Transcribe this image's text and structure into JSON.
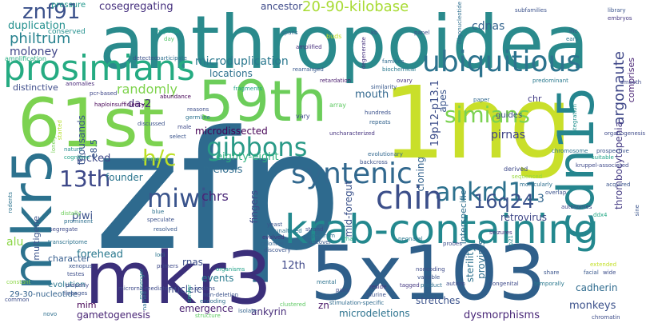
{
  "words": [
    {
      "text": "zfp",
      "color": "#2e6a8e"
    },
    {
      "text": "anthropoidea",
      "color": "#2a8a8c"
    },
    {
      "text": "1ng",
      "color": "#c9df2a"
    },
    {
      "text": "5x103",
      "color": "#2f5f8a"
    },
    {
      "text": "mkr3",
      "color": "#3b2f7a"
    },
    {
      "text": "61st",
      "color": "#7cd250"
    },
    {
      "text": "59th",
      "color": "#6ccd5a"
    },
    {
      "text": "cdn15",
      "color": "#25858e"
    },
    {
      "text": "mkr5",
      "color": "#2c728e"
    },
    {
      "text": "krab-containing",
      "color": "#23888e"
    },
    {
      "text": "prosimians",
      "color": "#25ab82"
    },
    {
      "text": "ubiquitious",
      "color": "#2c738e"
    },
    {
      "text": "syntenic",
      "color": "#31688e"
    },
    {
      "text": "gibbons",
      "color": "#2a9a87"
    },
    {
      "text": "ankrd11",
      "color": "#2d718e"
    },
    {
      "text": "chin",
      "color": "#3c4f8a"
    },
    {
      "text": "miwi",
      "color": "#3a548c"
    },
    {
      "text": "16q24",
      "color": "#3b528b"
    },
    {
      "text": "simians",
      "color": "#7ad151"
    },
    {
      "text": "znf91",
      "color": "#3b518b"
    },
    {
      "text": "13th",
      "color": "#3e4989"
    },
    {
      "text": "h/c",
      "color": "#bddf26"
    },
    {
      "text": "20-90-kilobase",
      "color": "#a8db34"
    },
    {
      "text": "cosegregating",
      "color": "#46307e"
    },
    {
      "text": "ancestor",
      "color": "#3e4a89"
    },
    {
      "text": "duplication",
      "color": "#218f8d"
    },
    {
      "text": "philtrum",
      "color": "#26818e"
    },
    {
      "text": "moloney",
      "color": "#404688"
    },
    {
      "text": "cdnas",
      "color": "#33638d"
    },
    {
      "text": "argonaute",
      "color": "#3f4788"
    },
    {
      "text": "microduplication",
      "color": "#2a788e"
    },
    {
      "text": "locations",
      "color": "#2d708e"
    },
    {
      "text": "randomly",
      "color": "#7fd34e"
    },
    {
      "text": "distinctive",
      "color": "#3e4c8a"
    },
    {
      "text": "da-2",
      "color": "#472d7b"
    },
    {
      "text": "mouth",
      "color": "#31678e"
    },
    {
      "text": "19p12-p13.1",
      "color": "#3d4e8a"
    },
    {
      "text": "comprises",
      "color": "#482374"
    },
    {
      "text": "thrombocytopenia",
      "color": "#443a83"
    },
    {
      "text": "pirnas",
      "color": "#414487"
    },
    {
      "text": "apes",
      "color": "#3a548c"
    },
    {
      "text": "eighty-eight",
      "color": "#2db27d"
    },
    {
      "text": "microdissected",
      "color": "#440154"
    },
    {
      "text": "picked",
      "color": "#3e4a89"
    },
    {
      "text": "founder",
      "color": "#2b758e"
    },
    {
      "text": "meiosis",
      "color": "#2f6c8e"
    },
    {
      "text": "thousands",
      "color": "#3a538b"
    },
    {
      "text": "e8.5",
      "color": "#38588c"
    },
    {
      "text": "chrs",
      "color": "#482576"
    },
    {
      "text": "piwi",
      "color": "#3b518b"
    },
    {
      "text": "3",
      "color": "#31668e"
    },
    {
      "text": "cloning",
      "color": "#33628d"
    },
    {
      "text": "interspecific",
      "color": "#2e6f8e"
    },
    {
      "text": "12th",
      "color": "#3f4889"
    },
    {
      "text": "mid-foregut",
      "color": "#3b528b"
    },
    {
      "text": "fingers",
      "color": "#3e4989"
    },
    {
      "text": "retrovirus",
      "color": "#3f4788"
    },
    {
      "text": "sterility",
      "color": "#2c718e"
    },
    {
      "text": "provirus",
      "color": "#2e6e8e"
    },
    {
      "text": "forehead",
      "color": "#2a788e"
    },
    {
      "text": "rnas",
      "color": "#3c4f8a"
    },
    {
      "text": "events",
      "color": "#297b8e"
    },
    {
      "text": "multigene",
      "color": "#3a538b"
    },
    {
      "text": "character",
      "color": "#365d8d"
    },
    {
      "text": "nucleic",
      "color": "#3d4d8a"
    },
    {
      "text": "29-30-nucleotide",
      "color": "#33628d"
    },
    {
      "text": "mim",
      "color": "#440154"
    },
    {
      "text": "gametogenesis",
      "color": "#482475"
    },
    {
      "text": "emergence",
      "color": "#481f70"
    },
    {
      "text": "ankyrin",
      "color": "#472c7a"
    },
    {
      "text": "microdeletions",
      "color": "#2c728e"
    },
    {
      "text": "stretches",
      "color": "#3b528b"
    },
    {
      "text": "dysmorphisms",
      "color": "#482677"
    },
    {
      "text": "monkeys",
      "color": "#3b518b"
    },
    {
      "text": "cadherin",
      "color": "#2f6b8e"
    },
    {
      "text": "guides",
      "color": "#3e4a89"
    },
    {
      "text": "chr",
      "color": "#433e85"
    },
    {
      "text": "zn",
      "color": "#481668"
    },
    {
      "text": "evolution",
      "color": "#2a768e"
    },
    {
      "text": "alu",
      "color": "#8bd646"
    },
    {
      "text": "pressure",
      "color": "#1f978b"
    },
    {
      "text": "conserved",
      "color": "#218f8d"
    },
    {
      "text": "amplification",
      "color": "#27ad81"
    },
    {
      "text": "anomalies",
      "color": "#482878"
    },
    {
      "text": "pcr-based",
      "color": "#3f4788"
    },
    {
      "text": "haploinsufficiency",
      "color": "#440154"
    },
    {
      "text": "abundance",
      "color": "#440154"
    },
    {
      "text": "fragments",
      "color": "#1fa187"
    },
    {
      "text": "regional",
      "color": "#20a386"
    },
    {
      "text": "day",
      "color": "#52c569"
    },
    {
      "text": "spans",
      "color": "#31688e"
    },
    {
      "text": "amplified",
      "color": "#472f7d"
    },
    {
      "text": "detected",
      "color": "#3b518b"
    },
    {
      "text": "participate",
      "color": "#2e6e8e"
    },
    {
      "text": "rearranged",
      "color": "#38588c"
    },
    {
      "text": "retardation",
      "color": "#481a6c"
    },
    {
      "text": "families",
      "color": "#2f6b8e"
    },
    {
      "text": "biochemical",
      "color": "#29798e"
    },
    {
      "text": "buds",
      "color": "#c5e021"
    },
    {
      "text": "kb",
      "color": "#3d4d8a"
    },
    {
      "text": "panel",
      "color": "#3b518b"
    },
    {
      "text": "degenerate",
      "color": "#46337f"
    },
    {
      "text": "oligonucleotide",
      "color": "#2e6e8e"
    },
    {
      "text": "subfamilies",
      "color": "#3b518b"
    },
    {
      "text": "library",
      "color": "#3a548c"
    },
    {
      "text": "embryos",
      "color": "#453882"
    },
    {
      "text": "ears",
      "color": "#2b758e"
    },
    {
      "text": "predominant",
      "color": "#29798e"
    },
    {
      "text": "smooth",
      "color": "#3e4a89"
    },
    {
      "text": "similarity",
      "color": "#38598c"
    },
    {
      "text": "ovary",
      "color": "#46327e"
    },
    {
      "text": "paper",
      "color": "#31688e"
    },
    {
      "text": "integration",
      "color": "#218f8d"
    },
    {
      "text": "array",
      "color": "#5ec962"
    },
    {
      "text": "reasons",
      "color": "#3d4e8a"
    },
    {
      "text": "germline",
      "color": "#2c738e"
    },
    {
      "text": "vary",
      "color": "#3e4989"
    },
    {
      "text": "hundreds",
      "color": "#3b518b"
    },
    {
      "text": "repeats",
      "color": "#33638d"
    },
    {
      "text": "uncharacterized",
      "color": "#46337f"
    },
    {
      "text": "organogenesis",
      "color": "#3e4a89"
    },
    {
      "text": "chromosome",
      "color": "#2c738e"
    },
    {
      "text": "prospective",
      "color": "#3a538b"
    },
    {
      "text": "suitable",
      "color": "#1fa188"
    },
    {
      "text": "kruppel-associated",
      "color": "#3e4989"
    },
    {
      "text": "started",
      "color": "#b5de2b"
    },
    {
      "text": "lonely",
      "color": "#75d054"
    },
    {
      "text": "discussed",
      "color": "#3b528b"
    },
    {
      "text": "male",
      "color": "#3e4a89"
    },
    {
      "text": "select",
      "color": "#3a548c"
    },
    {
      "text": "nature",
      "color": "#23898e"
    },
    {
      "text": "cognitive",
      "color": "#1fa187"
    },
    {
      "text": "evolutionary",
      "color": "#31678e"
    },
    {
      "text": "backcross",
      "color": "#3b518b"
    },
    {
      "text": "derived",
      "color": "#3e4989"
    },
    {
      "text": "sequenced",
      "color": "#98d83e"
    },
    {
      "text": "molecularly",
      "color": "#2e6e8e"
    },
    {
      "text": "acquired",
      "color": "#3a538b"
    },
    {
      "text": "overlap",
      "color": "#3b518b"
    },
    {
      "text": "autosomes",
      "color": "#3f4788"
    },
    {
      "text": "animal",
      "color": "#6ccd5a"
    },
    {
      "text": "rodents",
      "color": "#2c738e"
    },
    {
      "text": "distally",
      "color": "#6ccd5a"
    },
    {
      "text": "prominent",
      "color": "#2e6f8e"
    },
    {
      "text": "segregate",
      "color": "#3e4a89"
    },
    {
      "text": "blue",
      "color": "#2d718e"
    },
    {
      "text": "speculate",
      "color": "#3b518b"
    },
    {
      "text": "resolved",
      "color": "#38598c"
    },
    {
      "text": "yeast",
      "color": "#3a548c"
    },
    {
      "text": "unaltered",
      "color": "#2c728e"
    },
    {
      "text": "evolved",
      "color": "#46327e"
    },
    {
      "text": "colonies",
      "color": "#33638d"
    },
    {
      "text": "discovery",
      "color": "#3a548c"
    },
    {
      "text": "strand",
      "color": "#3e4c8a"
    },
    {
      "text": "spectrum",
      "color": "#2c728e"
    },
    {
      "text": "uncover",
      "color": "#38588c"
    },
    {
      "text": "rha",
      "color": "#25ab82"
    },
    {
      "text": "neonatal",
      "color": "#2a778e"
    },
    {
      "text": "probes",
      "color": "#3d4d8a"
    },
    {
      "text": "seizures",
      "color": "#46327e"
    },
    {
      "text": "p21",
      "color": "#23898e"
    },
    {
      "text": "ddx4",
      "color": "#22a884"
    },
    {
      "text": "transcriptome",
      "color": "#2c728e"
    },
    {
      "text": "xenopus",
      "color": "#3a548c"
    },
    {
      "text": "testes",
      "color": "#3d4e8a"
    },
    {
      "text": "loci",
      "color": "#2b758e"
    },
    {
      "text": "primers",
      "color": "#3e4a89"
    },
    {
      "text": "organisms",
      "color": "#1fa188"
    },
    {
      "text": "constant",
      "color": "#8bd646"
    },
    {
      "text": "messenger",
      "color": "#25848e"
    },
    {
      "text": "microrna-mediated",
      "color": "#3e4a89"
    },
    {
      "text": "mental",
      "color": "#2c728e"
    },
    {
      "text": "pairs",
      "color": "#3d4d8a"
    },
    {
      "text": "reside",
      "color": "#46327e"
    },
    {
      "text": "murine",
      "color": "#3b518b"
    },
    {
      "text": "noncoding",
      "color": "#3e4a89"
    },
    {
      "text": "variable",
      "color": "#3b528b"
    },
    {
      "text": "product",
      "color": "#2e6e8e"
    },
    {
      "text": "autism",
      "color": "#3e4989"
    },
    {
      "text": "tagged",
      "color": "#453882"
    },
    {
      "text": "clustered",
      "color": "#5ec962"
    },
    {
      "text": "stimulation-specific",
      "color": "#2f6b8e"
    },
    {
      "text": "congenital",
      "color": "#3e4a89"
    },
    {
      "text": "temporally",
      "color": "#2a788e"
    },
    {
      "text": "share",
      "color": "#3a548c"
    },
    {
      "text": "wide",
      "color": "#3d4e8a"
    },
    {
      "text": "facial",
      "color": "#38588c"
    },
    {
      "text": "extended",
      "color": "#c2df23"
    },
    {
      "text": "properly",
      "color": "#3e4989"
    },
    {
      "text": "lineages",
      "color": "#3b518b"
    },
    {
      "text": "named",
      "color": "#2e6e8e"
    },
    {
      "text": "confer",
      "color": "#1fa187"
    },
    {
      "text": "codons",
      "color": "#3e4a89"
    },
    {
      "text": "non-deletion",
      "color": "#3b528b"
    },
    {
      "text": "encoding",
      "color": "#2e6f8e"
    },
    {
      "text": "isolate",
      "color": "#33638d"
    },
    {
      "text": "structure",
      "color": "#5ec962"
    },
    {
      "text": "common",
      "color": "#3d4e8a"
    },
    {
      "text": "novo",
      "color": "#2e6e8e"
    },
    {
      "text": "chromatin",
      "color": "#3d4d8a"
    },
    {
      "text": "ihc",
      "color": "#3b518b"
    },
    {
      "text": "sine",
      "color": "#3a548c"
    }
  ]
}
